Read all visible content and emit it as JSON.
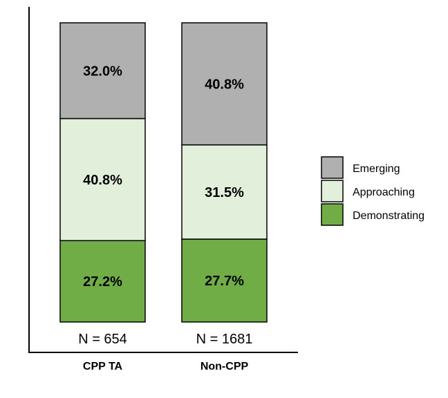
{
  "chart_data": {
    "type": "bar",
    "stacked": true,
    "percent": true,
    "categories": [
      "CPP TA",
      "Non-CPP"
    ],
    "sample_sizes": [
      "N = 654",
      "N = 1681"
    ],
    "series": [
      {
        "name": "Demonstrating",
        "values": [
          27.2,
          27.7
        ],
        "labels": [
          "27.2%",
          "27.7%"
        ],
        "color": "#70ad47"
      },
      {
        "name": "Approaching",
        "values": [
          40.8,
          31.5
        ],
        "labels": [
          "40.8%",
          "31.5%"
        ],
        "color": "#e2efda"
      },
      {
        "name": "Emerging",
        "values": [
          32.0,
          40.8
        ],
        "labels": [
          "32.0%",
          "40.8%"
        ],
        "color": "#b0b0b0"
      }
    ],
    "legend": {
      "position": "right",
      "order": [
        "Emerging",
        "Approaching",
        "Demonstrating"
      ]
    },
    "ylim": [
      0,
      100
    ],
    "grid": false,
    "title": "",
    "xlabel": "",
    "ylabel": ""
  }
}
